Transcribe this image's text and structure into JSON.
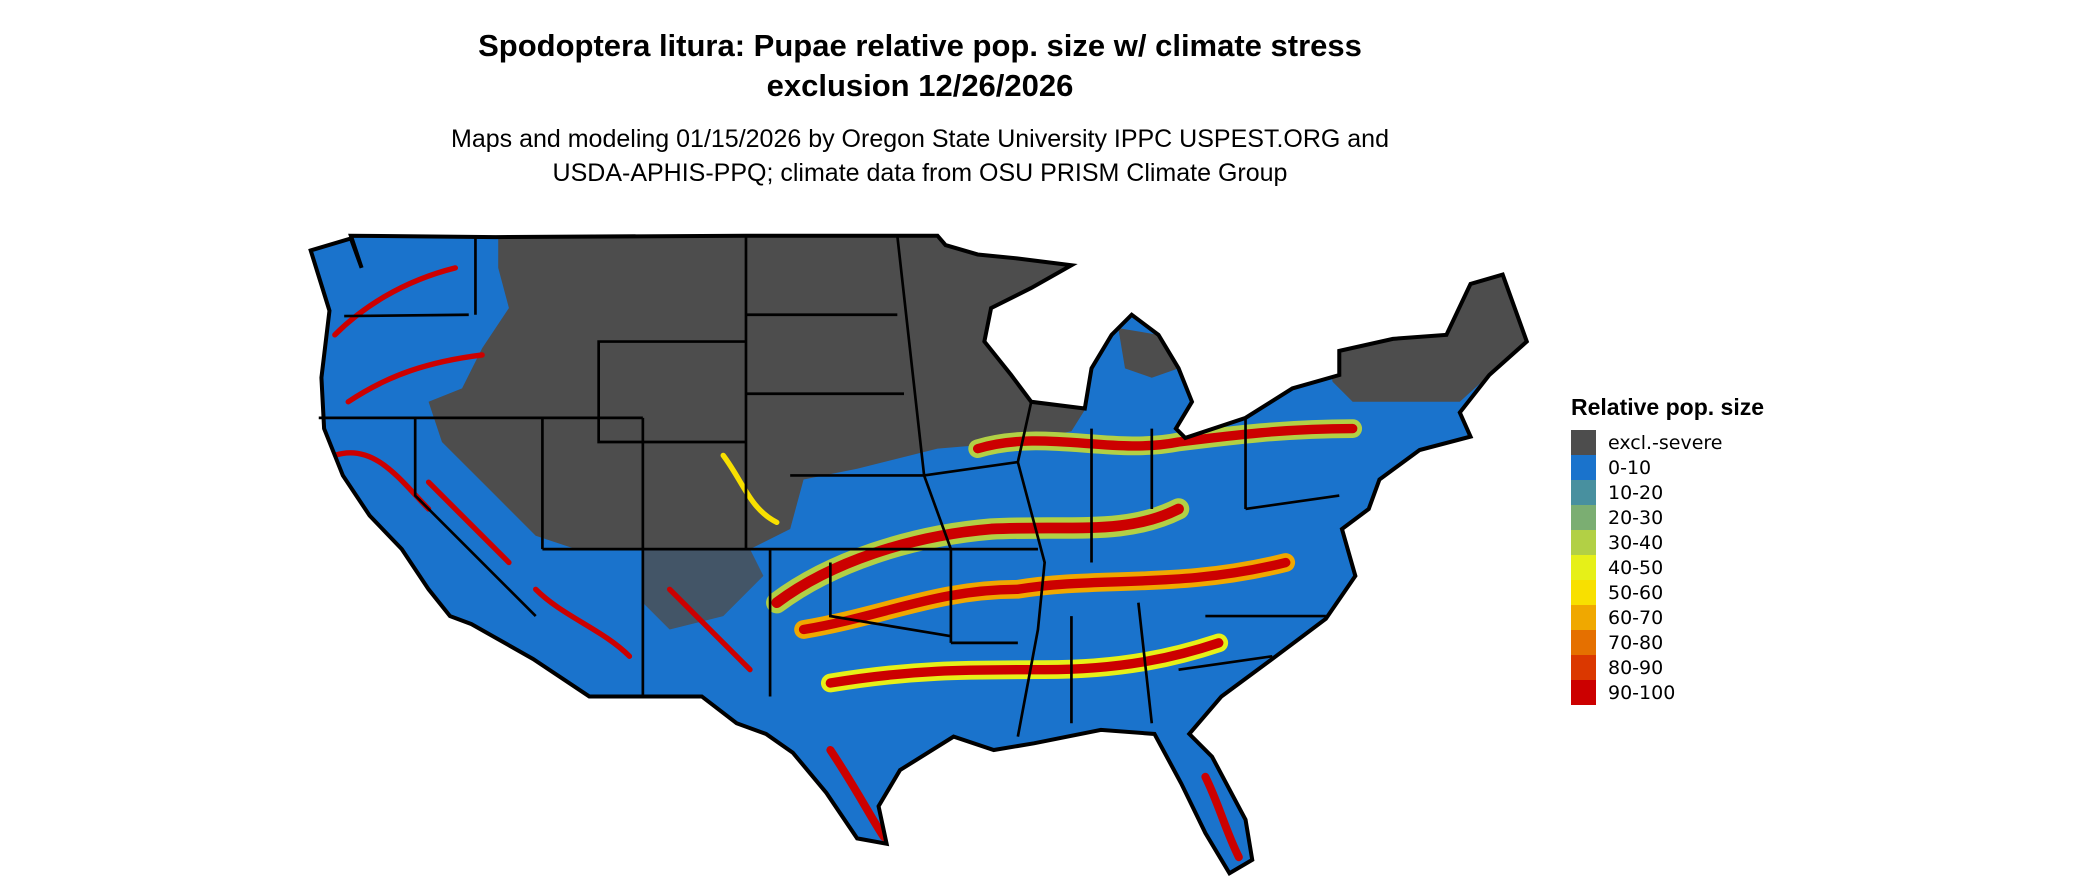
{
  "title_lines": [
    "Spodoptera litura: Pupae relative pop. size w/ climate stress",
    "exclusion 12/26/2026"
  ],
  "subtitle_lines": [
    "Maps and modeling 01/15/2026 by Oregon State University IPPC USPEST.ORG and",
    "USDA-APHIS-PPQ; climate data from OSU PRISM Climate Group"
  ],
  "map": {
    "region": "Contiguous United States",
    "excluded_color": "#4d4d4d",
    "background_class_color": "#1a73cc"
  },
  "legend": {
    "title": "Relative pop. size",
    "items": [
      {
        "label": "excl.-severe",
        "color": "#4d4d4d"
      },
      {
        "label": "0-10",
        "color": "#1a73cc"
      },
      {
        "label": "10-20",
        "color": "#48909f"
      },
      {
        "label": "20-30",
        "color": "#7bae72"
      },
      {
        "label": "30-40",
        "color": "#b2d045"
      },
      {
        "label": "40-50",
        "color": "#e6f018"
      },
      {
        "label": "50-60",
        "color": "#f8e000"
      },
      {
        "label": "60-70",
        "color": "#f0a800"
      },
      {
        "label": "70-80",
        "color": "#e57000"
      },
      {
        "label": "80-90",
        "color": "#db3800"
      },
      {
        "label": "90-100",
        "color": "#cc0000"
      }
    ]
  }
}
